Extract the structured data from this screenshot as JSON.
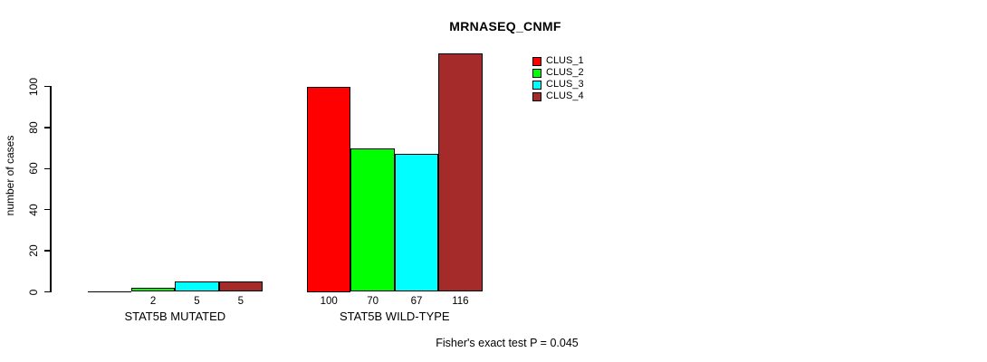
{
  "chart_data": {
    "type": "bar",
    "title": "MRNASEQ_CNMF",
    "xlabel": "",
    "ylabel": "number of cases",
    "yticks": [
      0,
      20,
      40,
      60,
      80,
      100
    ],
    "ylim": [
      0,
      116
    ],
    "grid": false,
    "legend_position": "top-right",
    "categories": [
      "STAT5B MUTATED",
      "STAT5B WILD-TYPE"
    ],
    "series": [
      {
        "name": "CLUS_1",
        "color": "#ff0000",
        "values": [
          0,
          100
        ]
      },
      {
        "name": "CLUS_2",
        "color": "#00ff00",
        "values": [
          2,
          70
        ]
      },
      {
        "name": "CLUS_3",
        "color": "#00ffff",
        "values": [
          5,
          67
        ]
      },
      {
        "name": "CLUS_4",
        "color": "#a52a2a",
        "values": [
          5,
          116
        ]
      }
    ],
    "bar_value_labels": [
      [
        "",
        "2",
        "5",
        "5"
      ],
      [
        "100",
        "70",
        "67",
        "116"
      ]
    ],
    "footnote": "Fisher's exact test P = 0.045"
  }
}
